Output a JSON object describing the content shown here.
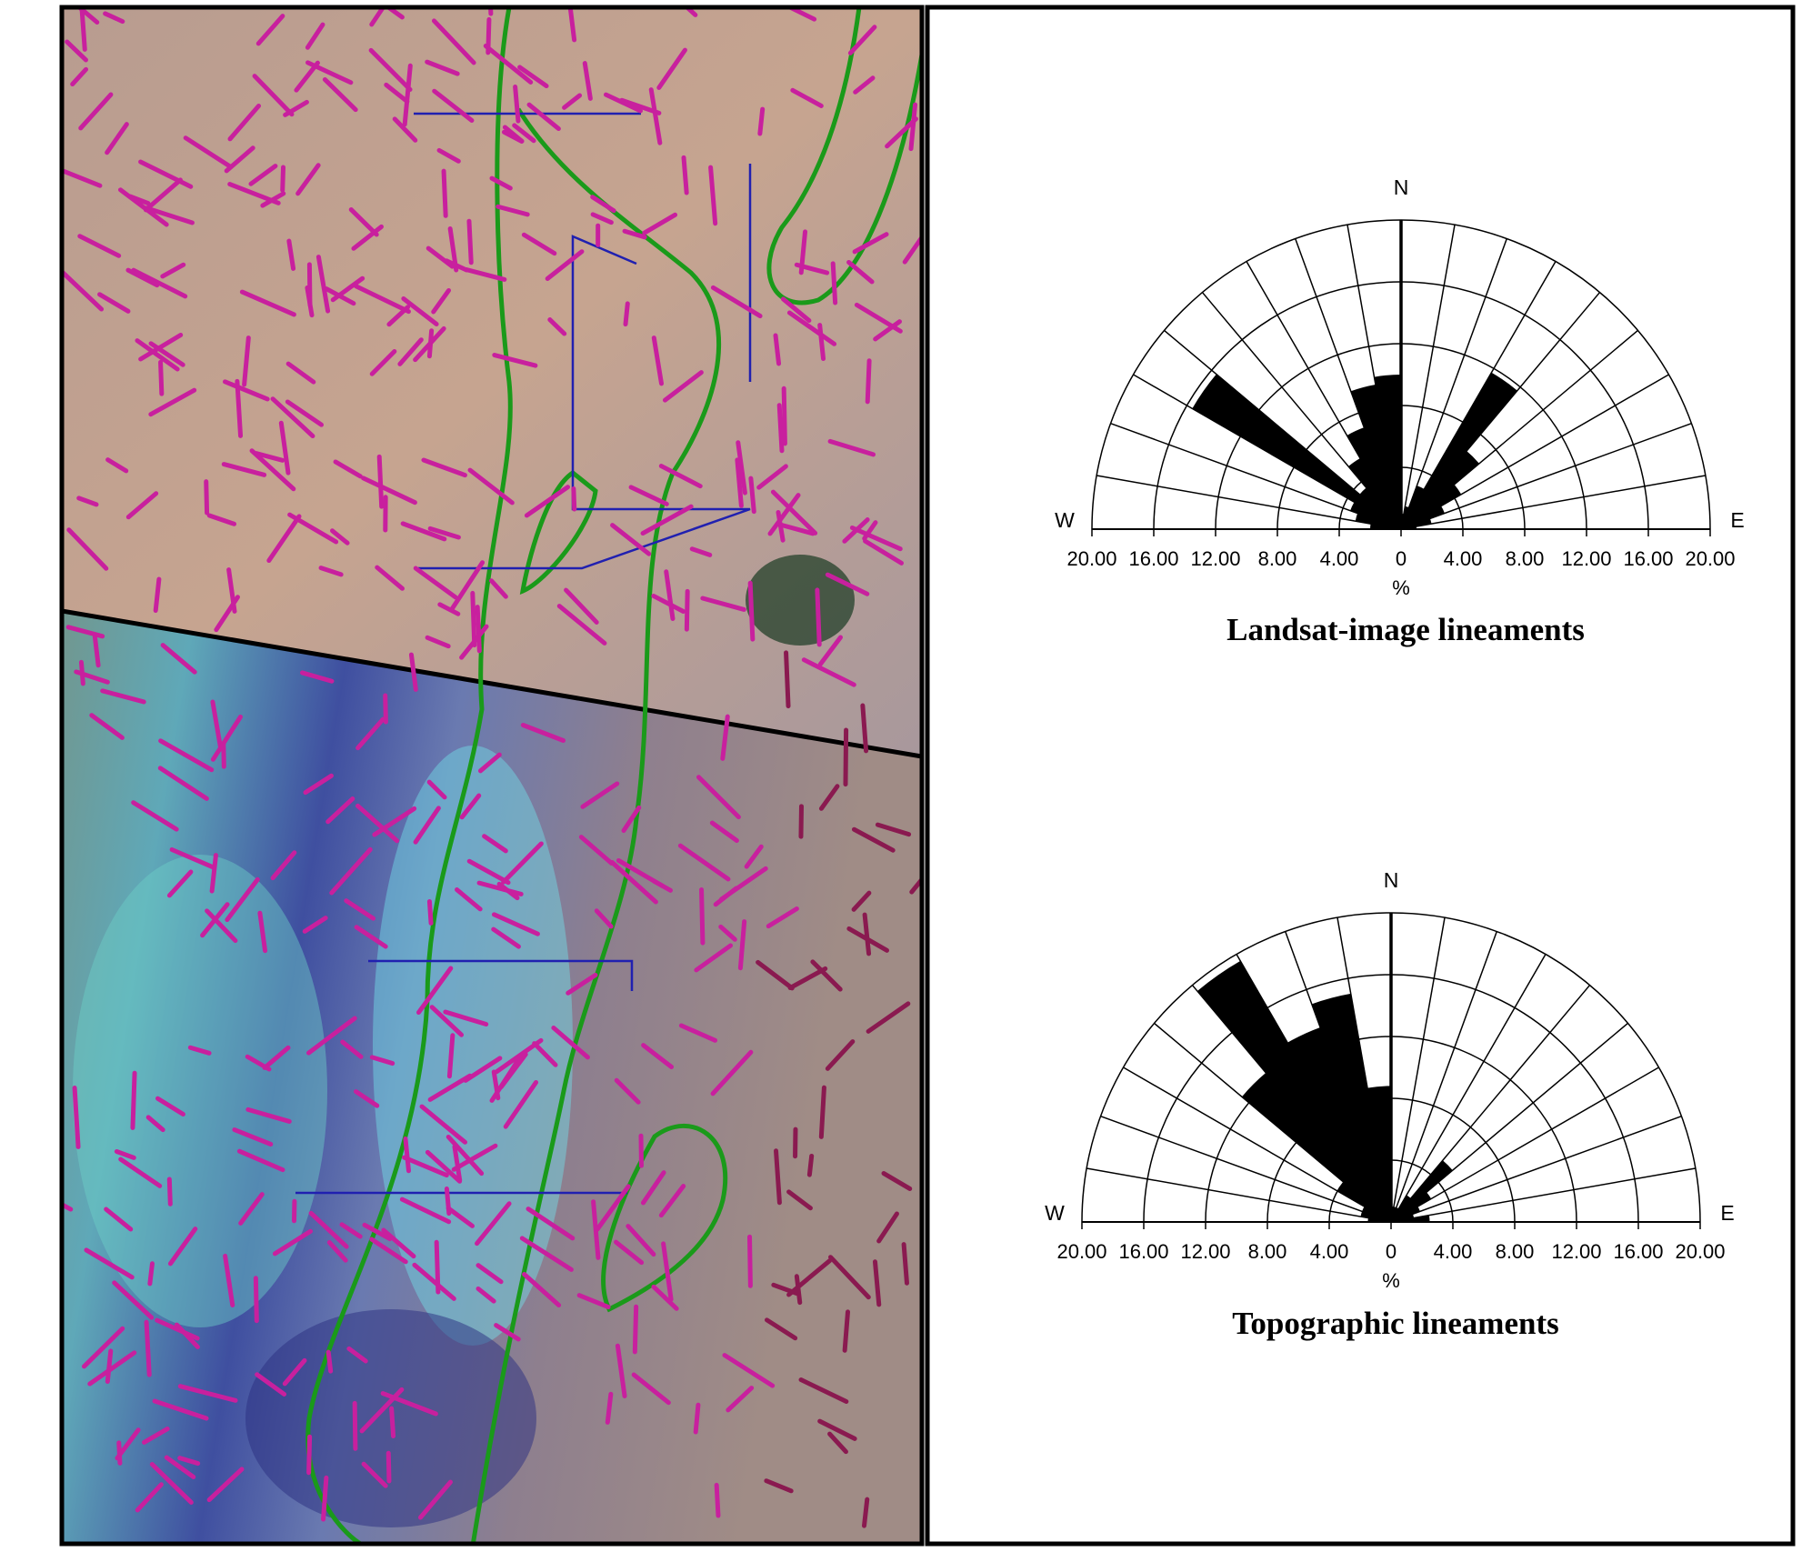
{
  "chart_data": [
    {
      "type": "rose",
      "title": "Landsat-image lineaments",
      "north_label": "N",
      "west_label": "W",
      "east_label": "E",
      "axis_label": "%",
      "values": [
        1,
        2,
        3,
        4.5,
        6.6,
        11.7,
        3,
        1.5,
        1,
        10,
        9.5,
        7,
        5.3,
        3.5,
        15.6,
        3.5,
        3,
        2
      ],
      "color": "#000000",
      "rlim": [
        0,
        20
      ],
      "rticks": [
        0,
        {
          "value": 4,
          "label": "4.00"
        },
        {
          "value": 8,
          "label": "8.00"
        },
        {
          "value": 12,
          "label": "12.00"
        },
        {
          "value": 16,
          "label": "16.00"
        },
        {
          "value": 20,
          "label": "20.00"
        }
      ]
    },
    {
      "type": "rose",
      "title": "Topographic lineaments",
      "north_label": "N",
      "west_label": "W",
      "east_label": "E",
      "axis_label": "%",
      "values": [
        2.5,
        1.5,
        2,
        3,
        5.2,
        2,
        1,
        1,
        1,
        8.8,
        15,
        13.4,
        19.5,
        12.6,
        4,
        2,
        2,
        1.5
      ],
      "color": "#000000",
      "rlim": [
        0,
        20
      ],
      "rticks": [
        0,
        {
          "value": 4,
          "label": "4.00"
        },
        {
          "value": 8,
          "label": "8.00"
        },
        {
          "value": 12,
          "label": "12.00"
        },
        {
          "value": 16,
          "label": "16.00"
        },
        {
          "value": 20,
          "label": "20.00"
        }
      ]
    }
  ]
}
